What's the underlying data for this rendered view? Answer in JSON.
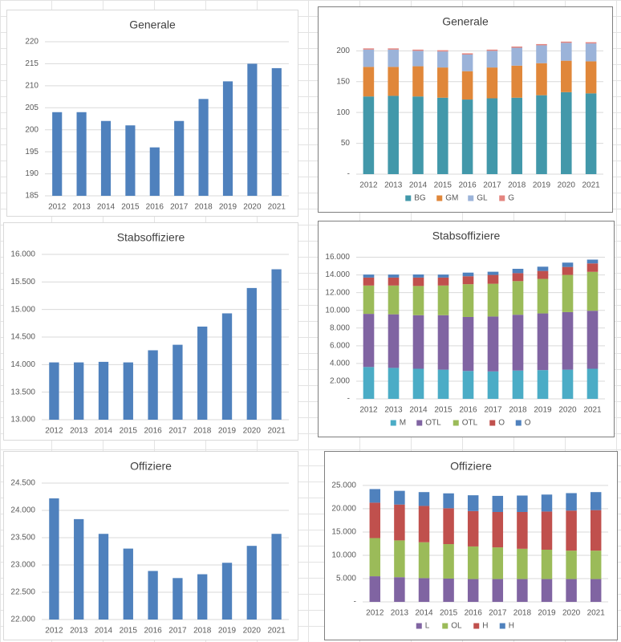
{
  "chart_data": [
    {
      "type": "bar",
      "title": "Generale",
      "categories": [
        "2012",
        "2013",
        "2014",
        "2015",
        "2016",
        "2017",
        "2018",
        "2019",
        "2020",
        "2021"
      ],
      "values": [
        204,
        204,
        202,
        201,
        196,
        202,
        207,
        211,
        215,
        214
      ],
      "color": "#4f81bd",
      "ylim": [
        185,
        220
      ],
      "yticks": [
        185,
        190,
        195,
        200,
        205,
        210,
        215,
        220
      ],
      "grid": true
    },
    {
      "type": "stacked_bar",
      "title": "Generale",
      "categories": [
        "2012",
        "2013",
        "2014",
        "2015",
        "2016",
        "2017",
        "2018",
        "2019",
        "2020",
        "2021"
      ],
      "series": [
        {
          "name": "BG",
          "color": "#4298aa",
          "values": [
            126,
            127,
            126,
            124,
            121,
            123,
            124,
            128,
            133,
            131
          ]
        },
        {
          "name": "GM",
          "color": "#e0873a",
          "values": [
            48,
            47,
            49,
            49,
            46,
            50,
            52,
            52,
            51,
            52
          ]
        },
        {
          "name": "GL",
          "color": "#9bb3d9",
          "values": [
            28,
            28,
            25,
            26,
            27,
            27,
            29,
            29,
            29,
            29
          ]
        },
        {
          "name": "G",
          "color": "#e4847f",
          "values": [
            2,
            2,
            2,
            2,
            2,
            2,
            2,
            2,
            2,
            2
          ]
        }
      ],
      "ylim": [
        0,
        220
      ],
      "yticks": [
        {
          "value": 0,
          "label": "-"
        },
        50,
        100,
        150,
        200
      ],
      "grid": true,
      "legend": "bottom"
    },
    {
      "type": "bar",
      "title": "Stabsoffiziere",
      "categories": [
        "2012",
        "2013",
        "2014",
        "2015",
        "2016",
        "2017",
        "2018",
        "2019",
        "2020",
        "2021"
      ],
      "values": [
        14040,
        14040,
        14050,
        14040,
        14260,
        14360,
        14690,
        14930,
        15390,
        15730
      ],
      "color": "#4f81bd",
      "ylim": [
        13000,
        16000
      ],
      "yticks": [
        {
          "value": 13000,
          "label": "13.000"
        },
        {
          "value": 13500,
          "label": "13.500"
        },
        {
          "value": 14000,
          "label": "14.000"
        },
        {
          "value": 14500,
          "label": "14.500"
        },
        {
          "value": 15000,
          "label": "15.000"
        },
        {
          "value": 15500,
          "label": "15.500"
        },
        {
          "value": 16000,
          "label": "16.000"
        }
      ],
      "grid": true
    },
    {
      "type": "stacked_bar",
      "title": "Stabsoffiziere",
      "categories": [
        "2012",
        "2013",
        "2014",
        "2015",
        "2016",
        "2017",
        "2018",
        "2019",
        "2020",
        "2021"
      ],
      "series": [
        {
          "name": "M",
          "color": "#4bacc6",
          "values": [
            3600,
            3500,
            3400,
            3300,
            3150,
            3100,
            3200,
            3250,
            3300,
            3400
          ]
        },
        {
          "name": "OTL",
          "color": "#8064a2",
          "values": [
            6000,
            6050,
            6050,
            6150,
            6100,
            6200,
            6300,
            6400,
            6500,
            6550
          ]
        },
        {
          "name": "OTL",
          "color": "#9bbb59",
          "values": [
            3200,
            3250,
            3300,
            3350,
            3700,
            3700,
            3800,
            3900,
            4200,
            4400
          ]
        },
        {
          "name": "O",
          "color": "#c0504d",
          "values": [
            900,
            900,
            950,
            900,
            900,
            1000,
            900,
            900,
            900,
            950
          ]
        },
        {
          "name": "O",
          "color": "#4f81bd",
          "values": [
            340,
            340,
            350,
            340,
            410,
            360,
            490,
            480,
            490,
            430
          ]
        }
      ],
      "ylim": [
        0,
        16500
      ],
      "yticks": [
        {
          "value": 0,
          "label": "-"
        },
        {
          "value": 2000,
          "label": "2.000"
        },
        {
          "value": 4000,
          "label": "4.000"
        },
        {
          "value": 6000,
          "label": "6.000"
        },
        {
          "value": 8000,
          "label": "8.000"
        },
        {
          "value": 10000,
          "label": "10.000"
        },
        {
          "value": 12000,
          "label": "12.000"
        },
        {
          "value": 14000,
          "label": "14.000"
        },
        {
          "value": 16000,
          "label": "16.000"
        }
      ],
      "grid": true,
      "legend": "bottom"
    },
    {
      "type": "bar",
      "title": "Offiziere",
      "categories": [
        "2012",
        "2013",
        "2014",
        "2015",
        "2016",
        "2017",
        "2018",
        "2019",
        "2020",
        "2021"
      ],
      "values": [
        24220,
        23840,
        23570,
        23300,
        22890,
        22760,
        22830,
        23040,
        23350,
        23570
      ],
      "color": "#4f81bd",
      "ylim": [
        22000,
        24500
      ],
      "yticks": [
        {
          "value": 22000,
          "label": "22.000"
        },
        {
          "value": 22500,
          "label": "22.500"
        },
        {
          "value": 23000,
          "label": "23.000"
        },
        {
          "value": 23500,
          "label": "23.500"
        },
        {
          "value": 24000,
          "label": "24.000"
        },
        {
          "value": 24500,
          "label": "24.500"
        }
      ],
      "grid": true
    },
    {
      "type": "stacked_bar",
      "title": "Offiziere",
      "categories": [
        "2012",
        "2013",
        "2014",
        "2015",
        "2016",
        "2017",
        "2018",
        "2019",
        "2020",
        "2021"
      ],
      "series": [
        {
          "name": "L",
          "color": "#8064a2",
          "values": [
            5500,
            5300,
            5100,
            5000,
            4900,
            4900,
            4900,
            4900,
            4900,
            4900
          ]
        },
        {
          "name": "OL",
          "color": "#9bbb59",
          "values": [
            8200,
            7900,
            7700,
            7400,
            7000,
            6800,
            6500,
            6300,
            6100,
            6100
          ]
        },
        {
          "name": "H",
          "color": "#c0504d",
          "values": [
            7600,
            7700,
            7800,
            7700,
            7600,
            7600,
            7900,
            8200,
            8600,
            8700
          ]
        },
        {
          "name": "H",
          "color": "#4f81bd",
          "values": [
            2920,
            2940,
            2970,
            3200,
            3390,
            3460,
            3530,
            3640,
            3750,
            3870
          ]
        }
      ],
      "ylim": [
        0,
        25500
      ],
      "yticks": [
        {
          "value": 0,
          "label": "-"
        },
        {
          "value": 5000,
          "label": "5.000"
        },
        {
          "value": 10000,
          "label": "10.000"
        },
        {
          "value": 15000,
          "label": "15.000"
        },
        {
          "value": 20000,
          "label": "20.000"
        },
        {
          "value": 25000,
          "label": "25.000"
        }
      ],
      "grid": true,
      "legend": "bottom"
    }
  ]
}
